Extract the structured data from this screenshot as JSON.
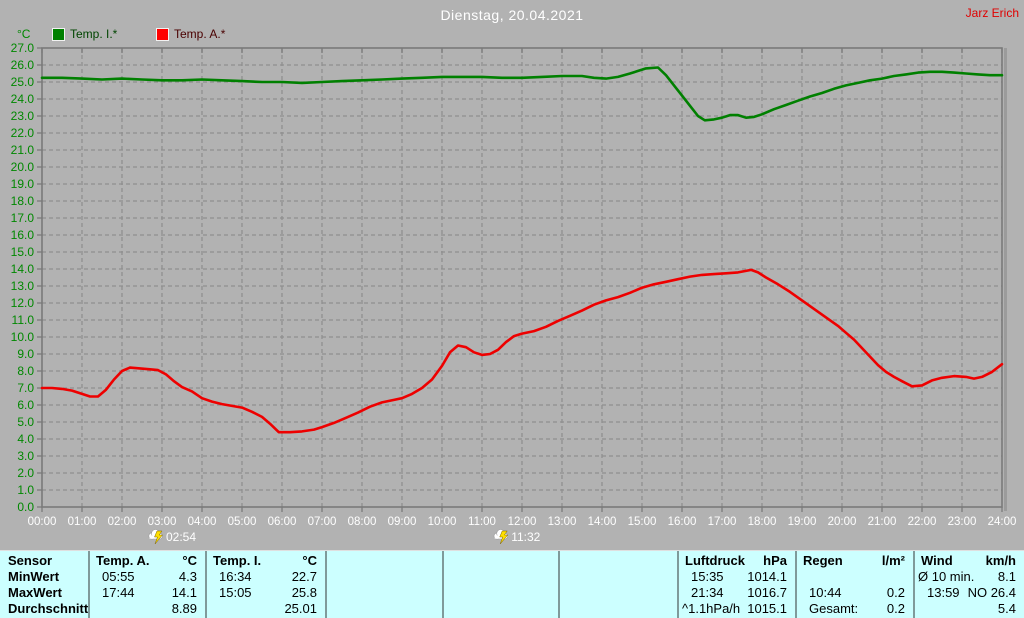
{
  "window": {
    "background": "#b2b2b2"
  },
  "header": {
    "title": "Dienstag, 20.04.2021",
    "title_color": "#ffffff",
    "user": "Jarz Erich",
    "user_color": "#e00000"
  },
  "legend": {
    "axis_unit": "°C",
    "items": [
      {
        "label": "Temp. I.*",
        "swatch_color": "#008000",
        "text_color": "#004500"
      },
      {
        "label": "Temp. A.*",
        "swatch_color": "#ff0000",
        "text_color": "#4a0000"
      }
    ]
  },
  "chart_data": {
    "type": "line",
    "title": "Dienstag, 20.04.2021",
    "ylabel": "°C",
    "xlim": [
      0,
      24
    ],
    "ylim": [
      0,
      27
    ],
    "grid": "dashed",
    "legend_position": "top-left",
    "colors": {
      "background": "#b2b2b2",
      "grid": "#8f8f8f",
      "frame": "#7a7a7a",
      "frame_shadow": "#9b9b9b",
      "y_tick_text": "#008800",
      "x_tick_text": "#ffffff",
      "event_text": "#ffffff"
    },
    "x_tick_labels": [
      "00:00",
      "01:00",
      "02:00",
      "03:00",
      "04:00",
      "05:00",
      "06:00",
      "07:00",
      "08:00",
      "09:00",
      "10:00",
      "11:00",
      "12:00",
      "13:00",
      "14:00",
      "15:00",
      "16:00",
      "17:00",
      "18:00",
      "19:00",
      "20:00",
      "21:00",
      "22:00",
      "23:00",
      "24:00"
    ],
    "y_tick_labels": [
      "27.0",
      "26.0",
      "25.0",
      "24.0",
      "23.0",
      "22.0",
      "21.0",
      "20.0",
      "19.0",
      "18.0",
      "17.0",
      "16.0",
      "15.0",
      "14.0",
      "13.0",
      "12.0",
      "11.0",
      "10.0",
      "9.0",
      "8.0",
      "7.0",
      "6.0",
      "5.0",
      "4.0",
      "3.0",
      "2.0",
      "1.0",
      "0.0"
    ],
    "series": [
      {
        "name": "Temp. I.*",
        "color": "#008000",
        "points": [
          [
            0,
            25.25
          ],
          [
            0.5,
            25.25
          ],
          [
            1,
            25.2
          ],
          [
            1.5,
            25.15
          ],
          [
            2,
            25.2
          ],
          [
            2.5,
            25.15
          ],
          [
            3,
            25.1
          ],
          [
            3.5,
            25.1
          ],
          [
            4,
            25.15
          ],
          [
            4.5,
            25.1
          ],
          [
            5,
            25.05
          ],
          [
            5.5,
            25.0
          ],
          [
            6,
            25.0
          ],
          [
            6.5,
            24.95
          ],
          [
            7,
            25.0
          ],
          [
            7.5,
            25.05
          ],
          [
            8,
            25.1
          ],
          [
            8.5,
            25.15
          ],
          [
            9,
            25.2
          ],
          [
            9.5,
            25.25
          ],
          [
            10,
            25.3
          ],
          [
            10.5,
            25.3
          ],
          [
            11,
            25.3
          ],
          [
            11.5,
            25.25
          ],
          [
            12,
            25.25
          ],
          [
            12.5,
            25.3
          ],
          [
            13,
            25.35
          ],
          [
            13.5,
            25.35
          ],
          [
            13.8,
            25.25
          ],
          [
            14.1,
            25.2
          ],
          [
            14.4,
            25.3
          ],
          [
            14.7,
            25.5
          ],
          [
            15.1,
            25.8
          ],
          [
            15.4,
            25.85
          ],
          [
            15.6,
            25.4
          ],
          [
            15.8,
            24.8
          ],
          [
            16,
            24.2
          ],
          [
            16.2,
            23.6
          ],
          [
            16.4,
            23.0
          ],
          [
            16.57,
            22.75
          ],
          [
            16.8,
            22.8
          ],
          [
            17,
            22.9
          ],
          [
            17.2,
            23.05
          ],
          [
            17.4,
            23.05
          ],
          [
            17.6,
            22.9
          ],
          [
            17.8,
            22.95
          ],
          [
            18,
            23.1
          ],
          [
            18.3,
            23.4
          ],
          [
            18.6,
            23.65
          ],
          [
            18.9,
            23.9
          ],
          [
            19.2,
            24.15
          ],
          [
            19.5,
            24.35
          ],
          [
            19.8,
            24.6
          ],
          [
            20.1,
            24.8
          ],
          [
            20.4,
            24.95
          ],
          [
            20.7,
            25.1
          ],
          [
            21,
            25.2
          ],
          [
            21.3,
            25.35
          ],
          [
            21.6,
            25.45
          ],
          [
            21.9,
            25.55
          ],
          [
            22.2,
            25.6
          ],
          [
            22.5,
            25.6
          ],
          [
            22.8,
            25.55
          ],
          [
            23.1,
            25.5
          ],
          [
            23.4,
            25.45
          ],
          [
            23.7,
            25.4
          ],
          [
            24,
            25.4
          ]
        ]
      },
      {
        "name": "Temp. A.*",
        "color": "#ee0000",
        "points": [
          [
            0,
            7.0
          ],
          [
            0.25,
            7.0
          ],
          [
            0.5,
            6.95
          ],
          [
            0.75,
            6.85
          ],
          [
            1.0,
            6.65
          ],
          [
            1.2,
            6.5
          ],
          [
            1.4,
            6.5
          ],
          [
            1.6,
            6.9
          ],
          [
            1.8,
            7.5
          ],
          [
            2.0,
            8.0
          ],
          [
            2.2,
            8.2
          ],
          [
            2.45,
            8.15
          ],
          [
            2.7,
            8.1
          ],
          [
            2.9,
            8.05
          ],
          [
            3.1,
            7.8
          ],
          [
            3.3,
            7.4
          ],
          [
            3.5,
            7.05
          ],
          [
            3.75,
            6.8
          ],
          [
            4.0,
            6.4
          ],
          [
            4.25,
            6.2
          ],
          [
            4.5,
            6.05
          ],
          [
            4.75,
            5.95
          ],
          [
            5.0,
            5.85
          ],
          [
            5.25,
            5.6
          ],
          [
            5.5,
            5.3
          ],
          [
            5.7,
            4.9
          ],
          [
            5.92,
            4.4
          ],
          [
            6.2,
            4.4
          ],
          [
            6.5,
            4.45
          ],
          [
            6.8,
            4.55
          ],
          [
            7.0,
            4.7
          ],
          [
            7.3,
            4.95
          ],
          [
            7.6,
            5.25
          ],
          [
            7.9,
            5.55
          ],
          [
            8.2,
            5.9
          ],
          [
            8.5,
            6.15
          ],
          [
            8.8,
            6.3
          ],
          [
            9.0,
            6.4
          ],
          [
            9.25,
            6.65
          ],
          [
            9.5,
            7.0
          ],
          [
            9.75,
            7.5
          ],
          [
            10.0,
            8.3
          ],
          [
            10.2,
            9.1
          ],
          [
            10.4,
            9.5
          ],
          [
            10.6,
            9.4
          ],
          [
            10.8,
            9.1
          ],
          [
            11.0,
            8.95
          ],
          [
            11.2,
            9.0
          ],
          [
            11.4,
            9.25
          ],
          [
            11.6,
            9.7
          ],
          [
            11.8,
            10.05
          ],
          [
            12.0,
            10.2
          ],
          [
            12.3,
            10.35
          ],
          [
            12.6,
            10.6
          ],
          [
            12.9,
            10.95
          ],
          [
            13.2,
            11.25
          ],
          [
            13.5,
            11.55
          ],
          [
            13.8,
            11.9
          ],
          [
            14.1,
            12.15
          ],
          [
            14.4,
            12.35
          ],
          [
            14.7,
            12.6
          ],
          [
            15.0,
            12.9
          ],
          [
            15.3,
            13.1
          ],
          [
            15.6,
            13.25
          ],
          [
            15.9,
            13.4
          ],
          [
            16.2,
            13.55
          ],
          [
            16.5,
            13.65
          ],
          [
            16.8,
            13.7
          ],
          [
            17.1,
            13.75
          ],
          [
            17.4,
            13.8
          ],
          [
            17.73,
            13.95
          ],
          [
            17.9,
            13.8
          ],
          [
            18.1,
            13.5
          ],
          [
            18.4,
            13.1
          ],
          [
            18.7,
            12.65
          ],
          [
            19.0,
            12.15
          ],
          [
            19.3,
            11.65
          ],
          [
            19.6,
            11.15
          ],
          [
            19.9,
            10.65
          ],
          [
            20.1,
            10.25
          ],
          [
            20.3,
            9.85
          ],
          [
            20.5,
            9.35
          ],
          [
            20.7,
            8.85
          ],
          [
            20.9,
            8.35
          ],
          [
            21.1,
            7.95
          ],
          [
            21.3,
            7.65
          ],
          [
            21.5,
            7.4
          ],
          [
            21.75,
            7.1
          ],
          [
            22.0,
            7.15
          ],
          [
            22.25,
            7.45
          ],
          [
            22.5,
            7.6
          ],
          [
            22.8,
            7.7
          ],
          [
            23.1,
            7.65
          ],
          [
            23.3,
            7.55
          ],
          [
            23.5,
            7.65
          ],
          [
            23.75,
            7.95
          ],
          [
            24.0,
            8.4
          ]
        ]
      }
    ],
    "event_markers": [
      {
        "label": "02:54",
        "hour": 2.9,
        "icon": "storm-icon"
      },
      {
        "label": "11:32",
        "hour": 11.53,
        "icon": "storm-icon"
      }
    ]
  },
  "summary_table": {
    "background": "#ccffff",
    "row_labels": [
      "Sensor",
      "MinWert",
      "MaxWert",
      "Durchschnitt"
    ],
    "columns": [
      {
        "id": "temp-a",
        "header": "Temp. A.",
        "unit": "°C",
        "rows": [
          [
            "05:55",
            "4.3"
          ],
          [
            "17:44",
            "14.1"
          ],
          [
            "",
            "8.89"
          ]
        ]
      },
      {
        "id": "temp-i",
        "header": "Temp. I.",
        "unit": "°C",
        "rows": [
          [
            "16:34",
            "22.7"
          ],
          [
            "15:05",
            "25.8"
          ],
          [
            "",
            "25.01"
          ]
        ]
      },
      {
        "id": "empty-1",
        "header": "",
        "unit": "",
        "rows": [
          [
            "",
            ""
          ],
          [
            "",
            ""
          ],
          [
            "",
            ""
          ]
        ]
      },
      {
        "id": "empty-2",
        "header": "",
        "unit": "",
        "rows": [
          [
            "",
            ""
          ],
          [
            "",
            ""
          ],
          [
            "",
            ""
          ]
        ]
      },
      {
        "id": "empty-3",
        "header": "",
        "unit": "",
        "rows": [
          [
            "",
            ""
          ],
          [
            "",
            ""
          ],
          [
            "",
            ""
          ]
        ]
      },
      {
        "id": "luftdruck",
        "header": "Luftdruck",
        "unit": "hPa",
        "rows": [
          [
            "15:35",
            "1014.1"
          ],
          [
            "21:34",
            "1016.7"
          ],
          [
            "^1.1hPa/h",
            "1015.1"
          ]
        ]
      },
      {
        "id": "regen",
        "header": "Regen",
        "unit": "l/m²",
        "rows": [
          [
            "",
            ""
          ],
          [
            "10:44",
            "0.2"
          ],
          [
            "Gesamt:",
            "0.2"
          ]
        ]
      },
      {
        "id": "wind",
        "header": "Wind",
        "unit": "km/h",
        "rows": [
          [
            "Ø 10 min.",
            "8.1"
          ],
          [
            "13:59",
            "NO 26.4"
          ],
          [
            "",
            "5.4"
          ]
        ]
      }
    ]
  }
}
